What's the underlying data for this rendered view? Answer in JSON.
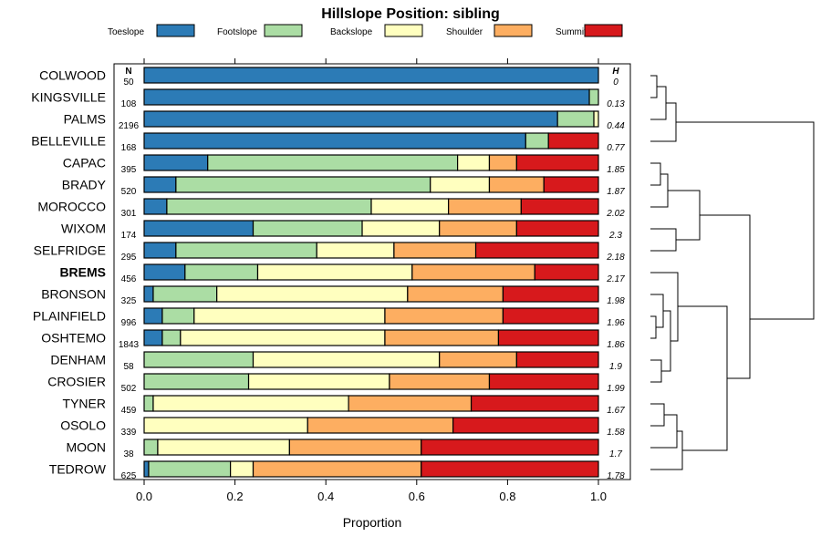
{
  "chart_data": {
    "type": "bar",
    "stacked": true,
    "orientation": "horizontal",
    "title": "Hillslope Position: sibling",
    "xlabel": "Proportion",
    "ylabel": "",
    "xlim": [
      0,
      1
    ],
    "xticks": [
      "0.0",
      "0.2",
      "0.4",
      "0.6",
      "0.8",
      "1.0"
    ],
    "xtick_values": [
      0,
      0.2,
      0.4,
      0.6,
      0.8,
      1.0
    ],
    "n_header": "N",
    "h_header": "H",
    "highlight": "BREMS",
    "series": [
      {
        "name": "Toeslope",
        "color": "#2c7bb6"
      },
      {
        "name": "Footslope",
        "color": "#abdda4"
      },
      {
        "name": "Backslope",
        "color": "#ffffbf"
      },
      {
        "name": "Shoulder",
        "color": "#fdae61"
      },
      {
        "name": "Summit",
        "color": "#d7191c"
      }
    ],
    "categories": [
      "COLWOOD",
      "KINGSVILLE",
      "PALMS",
      "BELLEVILLE",
      "CAPAC",
      "BRADY",
      "MOROCCO",
      "WIXOM",
      "SELFRIDGE",
      "BREMS",
      "BRONSON",
      "PLAINFIELD",
      "OSHTEMO",
      "DENHAM",
      "CROSIER",
      "TYNER",
      "OSOLO",
      "MOON",
      "TEDROW"
    ],
    "n": [
      "50",
      "108",
      "2196",
      "168",
      "395",
      "520",
      "301",
      "174",
      "295",
      "456",
      "325",
      "996",
      "1843",
      "58",
      "502",
      "459",
      "339",
      "38",
      "625"
    ],
    "h": [
      "0",
      "0.13",
      "0.44",
      "0.77",
      "1.85",
      "1.87",
      "2.02",
      "2.3",
      "2.18",
      "2.17",
      "1.98",
      "1.96",
      "1.86",
      "1.9",
      "1.99",
      "1.67",
      "1.58",
      "1.7",
      "1.78"
    ],
    "values": [
      [
        1.0,
        0.0,
        0.0,
        0.0,
        0.0
      ],
      [
        0.98,
        0.02,
        0.0,
        0.0,
        0.0
      ],
      [
        0.91,
        0.08,
        0.01,
        0.0,
        0.0
      ],
      [
        0.84,
        0.05,
        0.0,
        0.0,
        0.11
      ],
      [
        0.14,
        0.55,
        0.07,
        0.06,
        0.18
      ],
      [
        0.07,
        0.56,
        0.13,
        0.12,
        0.12
      ],
      [
        0.05,
        0.45,
        0.17,
        0.16,
        0.17
      ],
      [
        0.24,
        0.24,
        0.17,
        0.17,
        0.18
      ],
      [
        0.07,
        0.31,
        0.17,
        0.18,
        0.27
      ],
      [
        0.09,
        0.16,
        0.34,
        0.27,
        0.14
      ],
      [
        0.02,
        0.14,
        0.42,
        0.21,
        0.21
      ],
      [
        0.04,
        0.07,
        0.42,
        0.26,
        0.21
      ],
      [
        0.04,
        0.04,
        0.45,
        0.25,
        0.22
      ],
      [
        0.0,
        0.24,
        0.41,
        0.17,
        0.18
      ],
      [
        0.0,
        0.23,
        0.31,
        0.22,
        0.24
      ],
      [
        0.0,
        0.02,
        0.43,
        0.27,
        0.28
      ],
      [
        0.0,
        0.0,
        0.36,
        0.32,
        0.32
      ],
      [
        0.0,
        0.03,
        0.29,
        0.29,
        0.39
      ],
      [
        0.01,
        0.18,
        0.05,
        0.37,
        0.39
      ]
    ]
  }
}
